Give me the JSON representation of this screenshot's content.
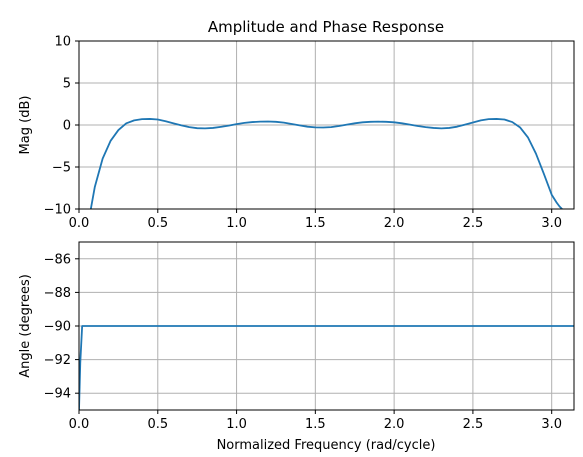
{
  "chart_data": [
    {
      "type": "line",
      "title": "Amplitude and Phase Response",
      "xlabel": "",
      "ylabel": "Mag (dB)",
      "xlim": [
        0,
        3.1416
      ],
      "ylim": [
        -10,
        10
      ],
      "xticks": [
        0,
        0.5,
        1,
        1.5,
        2,
        2.5,
        3
      ],
      "xtick_labels": [
        "0.0",
        "0.5",
        "1.0",
        "1.5",
        "2.0",
        "2.5",
        "3.0"
      ],
      "yticks": [
        10,
        5,
        0,
        -5,
        -10
      ],
      "ytick_labels": [
        "10",
        "5",
        "0",
        "−5",
        "−10"
      ],
      "grid": true,
      "series_color": "#1f77b4",
      "series": [
        {
          "x": [
            0.075,
            0.1,
            0.15,
            0.2,
            0.25,
            0.3,
            0.35,
            0.4,
            0.45,
            0.5,
            0.55,
            0.6,
            0.65,
            0.7,
            0.75,
            0.8,
            0.85,
            0.9,
            0.95,
            1.0,
            1.05,
            1.1,
            1.15,
            1.2,
            1.25,
            1.3,
            1.35,
            1.4,
            1.45,
            1.5,
            1.55,
            1.6,
            1.65,
            1.7,
            1.75,
            1.8,
            1.85,
            1.9,
            1.95,
            2.0,
            2.05,
            2.1,
            2.15,
            2.2,
            2.25,
            2.3,
            2.35,
            2.4,
            2.45,
            2.5,
            2.55,
            2.6,
            2.65,
            2.7,
            2.75,
            2.8,
            2.85,
            2.9,
            2.95,
            3.0,
            3.03,
            3.05,
            3.066
          ],
          "values": [
            -10,
            -7.4,
            -4.0,
            -1.9,
            -0.6,
            0.2,
            0.55,
            0.7,
            0.72,
            0.65,
            0.45,
            0.2,
            -0.05,
            -0.25,
            -0.38,
            -0.4,
            -0.35,
            -0.22,
            -0.08,
            0.1,
            0.25,
            0.35,
            0.4,
            0.42,
            0.38,
            0.28,
            0.12,
            -0.05,
            -0.2,
            -0.28,
            -0.3,
            -0.25,
            -0.12,
            0.05,
            0.2,
            0.32,
            0.38,
            0.4,
            0.38,
            0.32,
            0.2,
            0.05,
            -0.12,
            -0.25,
            -0.35,
            -0.4,
            -0.35,
            -0.2,
            0.05,
            0.3,
            0.55,
            0.7,
            0.72,
            0.65,
            0.35,
            -0.3,
            -1.5,
            -3.4,
            -5.8,
            -8.3,
            -9.2,
            -9.7,
            -10
          ]
        }
      ]
    },
    {
      "type": "line",
      "title": "",
      "xlabel": "Normalized Frequency (rad/cycle)",
      "ylabel": "Angle (degrees)",
      "xlim": [
        0,
        3.1416
      ],
      "ylim": [
        -95,
        -85
      ],
      "xticks": [
        0,
        0.5,
        1,
        1.5,
        2,
        2.5,
        3
      ],
      "xtick_labels": [
        "0.0",
        "0.5",
        "1.0",
        "1.5",
        "2.0",
        "2.5",
        "3.0"
      ],
      "yticks": [
        -86,
        -88,
        -90,
        -92,
        -94
      ],
      "ytick_labels": [
        "−86",
        "−88",
        "−90",
        "−92",
        "−94"
      ],
      "grid": true,
      "series_color": "#1f77b4",
      "series": [
        {
          "x": [
            0.0,
            0.008,
            0.02,
            1.0,
            2.0,
            3.1416
          ],
          "values": [
            -95,
            -92.2,
            -90,
            -90,
            -90,
            -90
          ]
        }
      ]
    }
  ]
}
